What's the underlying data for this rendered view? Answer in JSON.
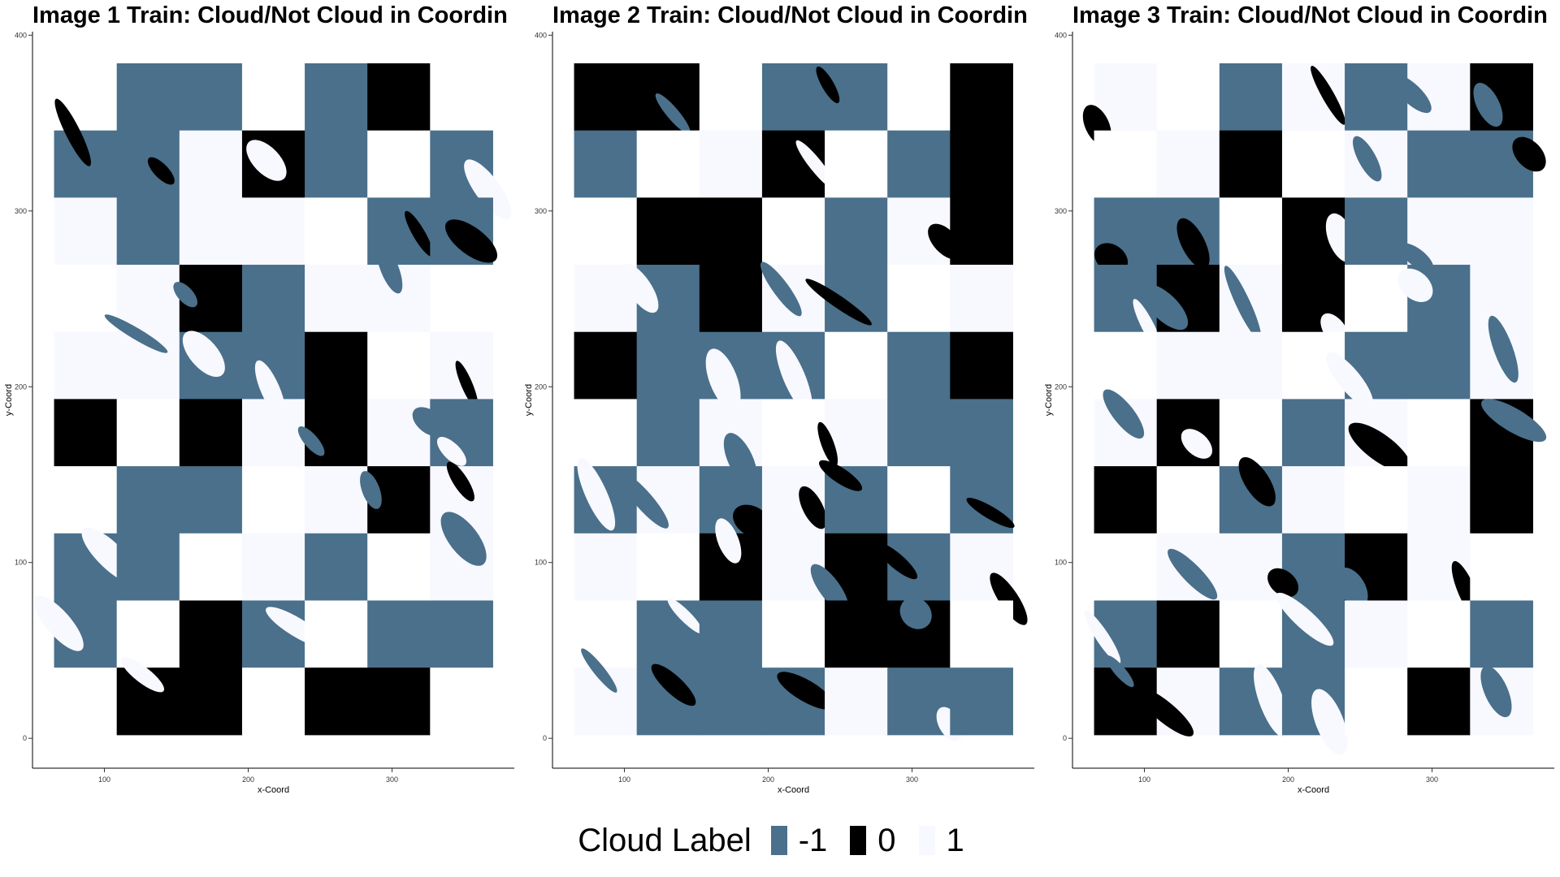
{
  "chart_data": [
    {
      "type": "heatmap",
      "title": "Image 1 Train: Cloud/Not Cloud in Coordin",
      "xlabel": "x-Coord",
      "ylabel": "y-Coord",
      "xlim": [
        50,
        385
      ],
      "ylim": [
        -17,
        402
      ],
      "x_ticks": [
        100,
        200,
        300
      ],
      "y_ticks": [
        0,
        100,
        200,
        300,
        400
      ],
      "data_extent": {
        "x": [
          65,
          370
        ],
        "y": [
          2,
          384
        ]
      }
    },
    {
      "type": "heatmap",
      "title": "Image 2 Train: Cloud/Not Cloud in Coordin",
      "xlabel": "x-Coord",
      "ylabel": "y-Coord",
      "xlim": [
        50,
        385
      ],
      "ylim": [
        -17,
        402
      ],
      "x_ticks": [
        100,
        200,
        300
      ],
      "y_ticks": [
        0,
        100,
        200,
        300,
        400
      ],
      "data_extent": {
        "x": [
          65,
          370
        ],
        "y": [
          2,
          384
        ]
      }
    },
    {
      "type": "heatmap",
      "title": "Image 3 Train: Cloud/Not Cloud in Coordin",
      "xlabel": "x-Coord",
      "ylabel": "y-Coord",
      "xlim": [
        50,
        385
      ],
      "ylim": [
        -17,
        402
      ],
      "x_ticks": [
        100,
        200,
        300
      ],
      "y_ticks": [
        0,
        100,
        200,
        300,
        400
      ],
      "data_extent": {
        "x": [
          65,
          370
        ],
        "y": [
          2,
          384
        ]
      }
    }
  ],
  "legend": {
    "title": "Cloud Label",
    "position": "bottom",
    "entries": [
      {
        "label": "-1",
        "color": "#4a708b"
      },
      {
        "label": "0",
        "color": "#000000"
      },
      {
        "label": "1",
        "color": "#f8f8ff"
      }
    ]
  },
  "colors": {
    "not_cloud": "#4a708b",
    "unlabeled": "#000000",
    "cloud": "#f8f8ff",
    "test_blocks": "#ffffff"
  }
}
